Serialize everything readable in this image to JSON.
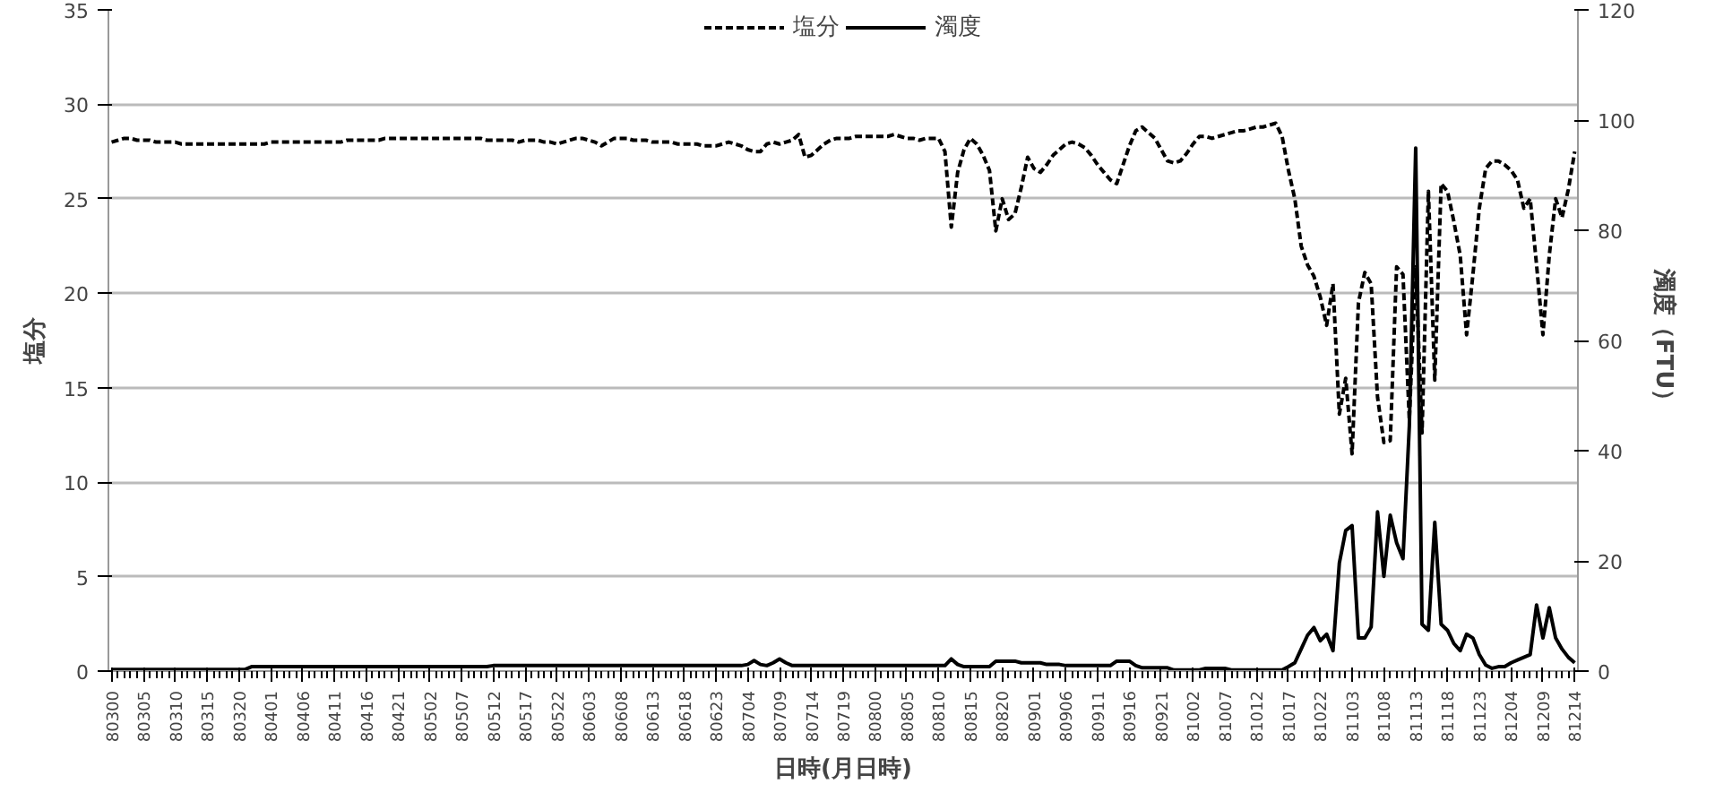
{
  "chart_data": {
    "type": "line",
    "xlabel": "日時(月日時)",
    "ylabel": "塩分",
    "y2label": "濁度（FTU）",
    "categories": [
      "80300",
      null,
      null,
      null,
      null,
      "80305",
      null,
      null,
      null,
      null,
      "80310",
      null,
      null,
      null,
      null,
      "80315",
      null,
      null,
      null,
      null,
      "80320",
      null,
      null,
      null,
      null,
      "80401",
      null,
      null,
      null,
      null,
      "80406",
      null,
      null,
      null,
      null,
      "80411",
      null,
      null,
      null,
      null,
      "80416",
      null,
      null,
      null,
      null,
      "80421",
      null,
      null,
      null,
      null,
      "80502",
      null,
      null,
      null,
      null,
      "80507",
      null,
      null,
      null,
      null,
      "80512",
      null,
      null,
      null,
      null,
      "80517",
      null,
      null,
      null,
      null,
      "80522",
      null,
      null,
      null,
      null,
      "80603",
      null,
      null,
      null,
      null,
      "80608",
      null,
      null,
      null,
      null,
      "80613",
      null,
      null,
      null,
      null,
      "80618",
      null,
      null,
      null,
      null,
      "80623",
      null,
      null,
      null,
      null,
      "80704",
      null,
      null,
      null,
      null,
      "80709",
      null,
      null,
      null,
      null,
      "80714",
      null,
      null,
      null,
      null,
      "80719",
      null,
      null,
      null,
      null,
      "80800",
      null,
      null,
      null,
      null,
      "80805",
      null,
      null,
      null,
      null,
      "80810",
      null,
      null,
      null,
      null,
      "80815",
      null,
      null,
      null,
      null,
      "80820",
      null,
      null,
      null,
      null,
      "80901",
      null,
      null,
      null,
      null,
      "80906",
      null,
      null,
      null,
      null,
      "80911",
      null,
      null,
      null,
      null,
      "80916",
      null,
      null,
      null,
      null,
      "80921",
      null,
      null,
      null,
      null,
      "81002",
      null,
      null,
      null,
      null,
      "81007",
      null,
      null,
      null,
      null,
      "81012",
      null,
      null,
      null,
      null,
      "81017",
      null,
      null,
      null,
      null,
      "81022",
      null,
      null,
      null,
      null,
      "81103",
      null,
      null,
      null,
      null,
      "81108",
      null,
      null,
      null,
      null,
      "81113",
      null,
      null,
      null,
      null,
      "81118",
      null,
      null,
      null,
      null,
      "81123",
      null,
      null,
      null,
      null,
      "81204",
      null,
      null,
      null,
      null,
      "81209",
      null,
      null,
      null,
      null,
      "81214"
    ],
    "series": [
      {
        "name": "塩分",
        "color": "#000000",
        "line_style": "dashed",
        "values": [
          28.0,
          28.1,
          28.2,
          28.2,
          28.1,
          28.1,
          28.1,
          28.0,
          28.0,
          28.0,
          28.0,
          27.9,
          27.9,
          27.9,
          27.9,
          27.9,
          27.9,
          27.9,
          27.9,
          27.9,
          27.9,
          27.9,
          27.9,
          27.9,
          27.9,
          28.0,
          28.0,
          28.0,
          28.0,
          28.0,
          28.0,
          28.0,
          28.0,
          28.0,
          28.0,
          28.0,
          28.0,
          28.1,
          28.1,
          28.1,
          28.1,
          28.1,
          28.1,
          28.2,
          28.2,
          28.2,
          28.2,
          28.2,
          28.2,
          28.2,
          28.2,
          28.2,
          28.2,
          28.2,
          28.2,
          28.2,
          28.2,
          28.2,
          28.2,
          28.1,
          28.1,
          28.1,
          28.1,
          28.1,
          28.0,
          28.1,
          28.1,
          28.1,
          28.0,
          28.0,
          27.9,
          28.0,
          28.1,
          28.2,
          28.2,
          28.1,
          28.0,
          27.8,
          28.0,
          28.2,
          28.2,
          28.2,
          28.1,
          28.1,
          28.1,
          28.0,
          28.0,
          28.0,
          28.0,
          27.9,
          27.9,
          27.9,
          27.9,
          27.8,
          27.8,
          27.8,
          27.9,
          28.0,
          27.9,
          27.8,
          27.6,
          27.5,
          27.5,
          27.9,
          28.0,
          27.9,
          28.0,
          28.1,
          28.4,
          27.2,
          27.3,
          27.6,
          27.9,
          28.1,
          28.2,
          28.2,
          28.2,
          28.3,
          28.3,
          28.3,
          28.3,
          28.3,
          28.3,
          28.4,
          28.3,
          28.2,
          28.2,
          28.1,
          28.2,
          28.2,
          28.2,
          27.5,
          23.5,
          26.4,
          27.6,
          28.2,
          27.9,
          27.3,
          26.5,
          23.3,
          25.0,
          23.9,
          24.2,
          25.6,
          27.2,
          26.6,
          26.4,
          26.8,
          27.3,
          27.6,
          27.9,
          28.0,
          27.9,
          27.7,
          27.3,
          26.8,
          26.4,
          26.0,
          25.8,
          26.8,
          27.8,
          28.6,
          28.8,
          28.5,
          28.2,
          27.6,
          27.0,
          26.9,
          27.0,
          27.4,
          27.9,
          28.3,
          28.3,
          28.2,
          28.3,
          28.4,
          28.5,
          28.6,
          28.6,
          28.7,
          28.8,
          28.8,
          28.9,
          29.0,
          28.3,
          26.5,
          25.0,
          22.5,
          21.5,
          20.9,
          19.8,
          18.3,
          20.5,
          13.6,
          15.5,
          11.5,
          19.5,
          21.1,
          20.5,
          14.5,
          12.1,
          12.2,
          21.4,
          21.0,
          13.3,
          21.4,
          12.6,
          25.4,
          15.4,
          25.8,
          25.4,
          23.8,
          22.0,
          17.8,
          21.0,
          24.5,
          26.6,
          27.0,
          27.0,
          26.8,
          26.5,
          26.0,
          24.5,
          25.0,
          21.5,
          17.8,
          22.0,
          25.0,
          24.0,
          25.5,
          27.5
        ]
      },
      {
        "name": "濁度",
        "color": "#000000",
        "line_style": "solid",
        "axis": "y2",
        "values": [
          0.3,
          0.3,
          0.3,
          0.3,
          0.3,
          0.3,
          0.3,
          0.3,
          0.3,
          0.3,
          0.3,
          0.3,
          0.3,
          0.3,
          0.3,
          0.3,
          0.3,
          0.3,
          0.3,
          0.3,
          0.3,
          0.3,
          0.8,
          0.8,
          0.8,
          0.8,
          0.8,
          0.8,
          0.8,
          0.8,
          0.8,
          0.8,
          0.8,
          0.8,
          0.8,
          0.8,
          0.8,
          0.8,
          0.8,
          0.8,
          0.8,
          0.8,
          0.8,
          0.8,
          0.8,
          0.8,
          0.8,
          0.8,
          0.8,
          0.8,
          0.8,
          0.8,
          0.8,
          0.8,
          0.8,
          0.8,
          0.8,
          0.8,
          0.8,
          0.8,
          1.0,
          1.0,
          1.0,
          1.0,
          1.0,
          1.0,
          1.0,
          1.0,
          1.0,
          1.0,
          1.0,
          1.0,
          1.0,
          1.0,
          1.0,
          1.0,
          1.0,
          1.0,
          1.0,
          1.0,
          1.0,
          1.0,
          1.0,
          1.0,
          1.0,
          1.0,
          1.0,
          1.0,
          1.0,
          1.0,
          1.0,
          1.0,
          1.0,
          1.0,
          1.0,
          1.0,
          1.0,
          1.0,
          1.0,
          1.0,
          1.2,
          1.9,
          1.2,
          1.0,
          1.5,
          2.2,
          1.5,
          1.0,
          1.0,
          1.0,
          1.0,
          1.0,
          1.0,
          1.0,
          1.0,
          1.0,
          1.0,
          1.0,
          1.0,
          1.0,
          1.0,
          1.0,
          1.0,
          1.0,
          1.0,
          1.0,
          1.0,
          1.0,
          1.0,
          1.0,
          1.0,
          1.0,
          2.2,
          1.2,
          0.8,
          0.8,
          0.8,
          0.8,
          0.8,
          1.8,
          1.8,
          1.8,
          1.8,
          1.5,
          1.5,
          1.5,
          1.5,
          1.2,
          1.2,
          1.2,
          1.0,
          1.0,
          1.0,
          1.0,
          1.0,
          1.0,
          1.0,
          1.0,
          1.8,
          1.8,
          1.8,
          1.0,
          0.6,
          0.6,
          0.6,
          0.6,
          0.6,
          0.2,
          0.2,
          0.2,
          0.2,
          0.2,
          0.5,
          0.5,
          0.5,
          0.5,
          0.2,
          0.2,
          0.2,
          0.2,
          0.2,
          0.2,
          0.2,
          0.2,
          0.2,
          0.8,
          1.5,
          4.0,
          6.5,
          7.9,
          5.5,
          6.7,
          3.7,
          19.6,
          25.5,
          26.4,
          6.0,
          6.0,
          8.0,
          28.9,
          17.2,
          28.3,
          23.3,
          20.4,
          44.4,
          94.9,
          8.5,
          7.4,
          27.0,
          8.5,
          7.4,
          5.0,
          3.7,
          6.7,
          6.0,
          3.0,
          1.1,
          0.5,
          0.8,
          0.8,
          1.5,
          2.0,
          2.5,
          3.0,
          12.0,
          6.0,
          11.5,
          6.0,
          4.0,
          2.5,
          1.5
        ]
      }
    ],
    "ylim": [
      0,
      35
    ],
    "yticks": [
      0,
      5,
      10,
      15,
      20,
      25,
      30,
      35
    ],
    "y2lim": [
      0,
      120
    ],
    "y2ticks": [
      0,
      20,
      40,
      60,
      80,
      100,
      120
    ],
    "grid": "y",
    "legend": "top"
  }
}
